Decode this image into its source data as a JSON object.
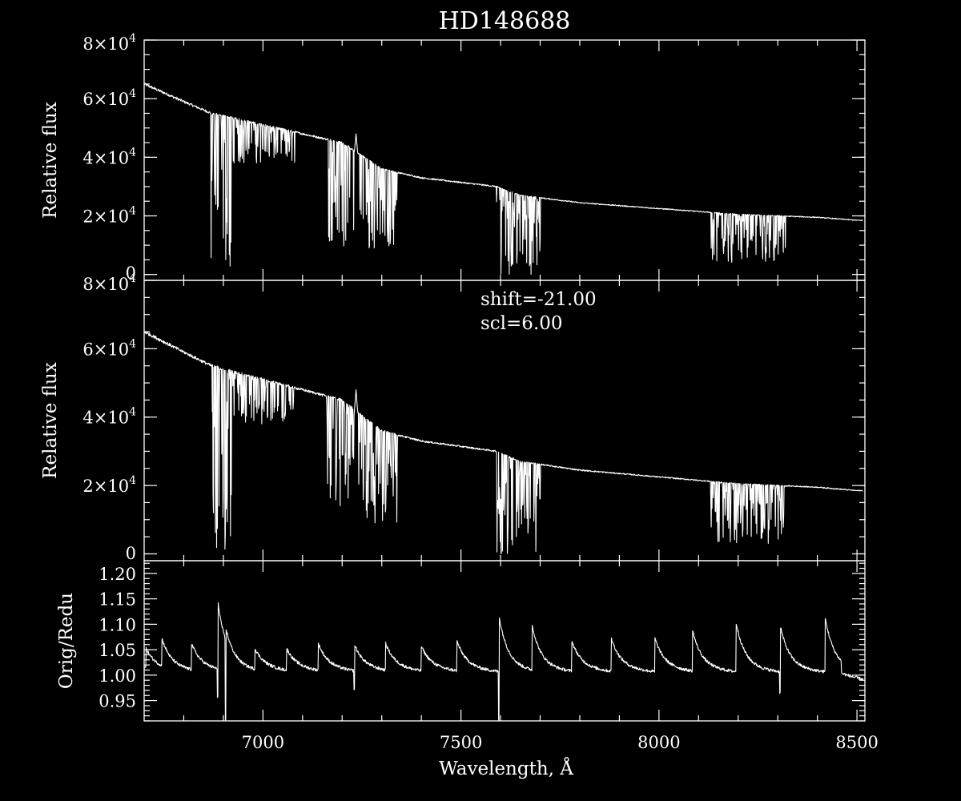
{
  "chart_data": [
    {
      "id": "top",
      "type": "line",
      "title": "HD148688",
      "ylabel": "Relative flux",
      "xlim": [
        6700,
        8520
      ],
      "ylim": [
        -2000,
        80000
      ],
      "yticks": [
        {
          "value": 0,
          "label": "0"
        },
        {
          "value": 20000,
          "label": "2×10",
          "exp": "4"
        },
        {
          "value": 40000,
          "label": "4×10",
          "exp": "4"
        },
        {
          "value": 60000,
          "label": "6×10",
          "exp": "4"
        },
        {
          "value": 80000,
          "label": "8×10",
          "exp": "4"
        }
      ],
      "color": "#ffffff",
      "continuum": {
        "x": [
          6700,
          6800,
          6870,
          7000,
          7200,
          7300,
          7400,
          7590,
          7650,
          7800,
          8000,
          8200,
          8400,
          8500
        ],
        "y": [
          65000,
          59000,
          55000,
          51000,
          45000,
          36000,
          33000,
          30000,
          27000,
          24500,
          22500,
          20500,
          19500,
          18500
        ]
      },
      "absorption_bands": [
        {
          "from": 6868,
          "to": 6920,
          "min_flux": 500
        },
        {
          "from": 6920,
          "to": 7080,
          "min_flux": 38000
        },
        {
          "from": 7160,
          "to": 7340,
          "min_flux": 9000
        },
        {
          "from": 7590,
          "to": 7700,
          "min_flux": 0
        },
        {
          "from": 8130,
          "to": 8320,
          "min_flux": 3000
        }
      ],
      "emission_peaks": [
        {
          "x": 7235,
          "y": 48000
        }
      ]
    },
    {
      "id": "middle",
      "type": "line",
      "ylabel": "Relative flux",
      "xlim": [
        6700,
        8520
      ],
      "ylim": [
        -2000,
        80000
      ],
      "yticks": [
        {
          "value": 0,
          "label": "0"
        },
        {
          "value": 20000,
          "label": "2×10",
          "exp": "4"
        },
        {
          "value": 40000,
          "label": "4×10",
          "exp": "4"
        },
        {
          "value": 60000,
          "label": "6×10",
          "exp": "4"
        },
        {
          "value": 80000,
          "label": "8×10",
          "exp": "4"
        }
      ],
      "annotations": [
        "shift=-21.00",
        "scl=6.00"
      ],
      "color": "#ffffff",
      "continuum": {
        "x": [
          6700,
          6800,
          6870,
          7000,
          7200,
          7300,
          7400,
          7590,
          7650,
          7800,
          8000,
          8200,
          8400,
          8500
        ],
        "y": [
          65000,
          59000,
          55000,
          51000,
          45000,
          36000,
          33000,
          30000,
          27000,
          24500,
          22500,
          20500,
          19500,
          18500
        ]
      },
      "absorption_bands": [
        {
          "from": 6868,
          "to": 6920,
          "min_flux": 500
        },
        {
          "from": 6920,
          "to": 7080,
          "min_flux": 38000
        },
        {
          "from": 7160,
          "to": 7340,
          "min_flux": 9000
        },
        {
          "from": 7590,
          "to": 7700,
          "min_flux": 0
        },
        {
          "from": 8130,
          "to": 8320,
          "min_flux": 3000
        }
      ],
      "emission_peaks": [
        {
          "x": 7235,
          "y": 48000
        }
      ]
    },
    {
      "id": "bottom",
      "type": "line",
      "ylabel": "Orig/Redu",
      "xlabel": "Wavelength, Å",
      "xlim": [
        6700,
        8520
      ],
      "ylim": [
        0.91,
        1.225
      ],
      "yticks": [
        {
          "value": 0.95,
          "label": "0.95"
        },
        {
          "value": 1.0,
          "label": "1.00"
        },
        {
          "value": 1.05,
          "label": "1.05"
        },
        {
          "value": 1.1,
          "label": "1.10"
        },
        {
          "value": 1.15,
          "label": "1.15"
        },
        {
          "value": 1.2,
          "label": "1.20"
        }
      ],
      "xticks": [
        {
          "value": 7000,
          "label": "7000"
        },
        {
          "value": 7500,
          "label": "7500"
        },
        {
          "value": 8000,
          "label": "8000"
        },
        {
          "value": 8500,
          "label": "8500"
        }
      ],
      "color": "#ffffff",
      "baseline": 1.0,
      "sawtooth_jumps": [
        {
          "x": 6705,
          "peak": 1.03
        },
        {
          "x": 6745,
          "peak": 1.05
        },
        {
          "x": 6820,
          "peak": 1.04
        },
        {
          "x": 6885,
          "peak": 1.13,
          "spike_low": 0.955
        },
        {
          "x": 6905,
          "peak": 1.075,
          "spike_low": 0.91
        },
        {
          "x": 6980,
          "peak": 1.03
        },
        {
          "x": 7060,
          "peak": 1.03
        },
        {
          "x": 7140,
          "peak": 1.04
        },
        {
          "x": 7230,
          "peak": 1.04,
          "spike_low": 0.97
        },
        {
          "x": 7310,
          "peak": 1.04
        },
        {
          "x": 7400,
          "peak": 1.035
        },
        {
          "x": 7490,
          "peak": 1.045
        },
        {
          "x": 7595,
          "peak": 1.1,
          "spike_low": 0.91
        },
        {
          "x": 7680,
          "peak": 1.075
        },
        {
          "x": 7780,
          "peak": 1.045
        },
        {
          "x": 7880,
          "peak": 1.05
        },
        {
          "x": 7990,
          "peak": 1.05
        },
        {
          "x": 8085,
          "peak": 1.065
        },
        {
          "x": 8195,
          "peak": 1.08
        },
        {
          "x": 8305,
          "peak": 1.08,
          "spike_low": 0.965
        },
        {
          "x": 8420,
          "peak": 1.09
        }
      ],
      "end_value": 0.99
    }
  ]
}
